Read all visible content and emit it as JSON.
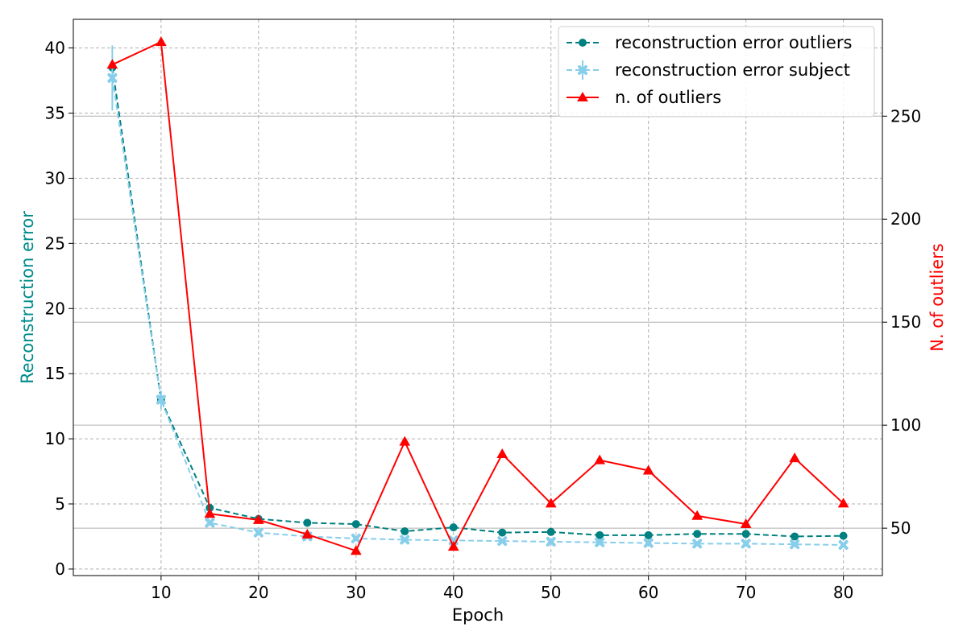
{
  "chart_data": {
    "type": "line",
    "x_label": "Epoch",
    "y_label_left": "Reconstruction error",
    "y_label_right": "N. of outliers",
    "x_lim": [
      1,
      84
    ],
    "y_lim_left": [
      -0.5,
      42.2
    ],
    "y_lim_right": [
      27,
      297
    ],
    "x_ticks": [
      10,
      20,
      30,
      40,
      50,
      60,
      70,
      80
    ],
    "y_ticks_left": [
      0,
      5,
      10,
      15,
      20,
      25,
      30,
      35,
      40
    ],
    "y_ticks_right": [
      50,
      100,
      150,
      200,
      250
    ],
    "grid": true,
    "legend_position": "upper right",
    "colors": {
      "left_axis_label": "#008B8B",
      "right_axis_label": "#FF0000"
    },
    "series": [
      {
        "name": "reconstruction error outliers",
        "axis": "left",
        "color": "#008080",
        "line_style": "dashed",
        "marker": "circle",
        "x": [
          5,
          10,
          15,
          20,
          25,
          30,
          35,
          40,
          45,
          50,
          55,
          60,
          65,
          70,
          75,
          80
        ],
        "y": [
          38.5,
          13.0,
          4.7,
          3.85,
          3.55,
          3.45,
          2.9,
          3.2,
          2.8,
          2.85,
          2.6,
          2.6,
          2.7,
          2.7,
          2.5,
          2.55
        ]
      },
      {
        "name": "reconstruction error subject",
        "axis": "left",
        "color": "#87CEEB",
        "line_style": "dashed",
        "marker": "x-thick",
        "x": [
          5,
          10,
          15,
          20,
          25,
          30,
          35,
          40,
          45,
          50,
          55,
          60,
          65,
          70,
          75,
          80
        ],
        "y": [
          37.7,
          13.0,
          3.55,
          2.8,
          2.5,
          2.35,
          2.25,
          2.2,
          2.15,
          2.1,
          2.05,
          2.0,
          1.95,
          1.95,
          1.9,
          1.85
        ],
        "error": [
          2.5,
          0.7,
          0.15,
          0.1,
          0.05,
          0.05,
          0.05,
          0.05,
          0.05,
          0.05,
          0.05,
          0.05,
          0.05,
          0.05,
          0.05,
          0.05
        ]
      },
      {
        "name": "n. of outliers",
        "axis": "right",
        "color": "#FF0000",
        "line_style": "solid",
        "marker": "triangle",
        "x": [
          5,
          10,
          15,
          20,
          25,
          30,
          35,
          40,
          45,
          50,
          55,
          60,
          65,
          70,
          75,
          80
        ],
        "y": [
          275,
          286,
          57,
          54,
          47,
          39,
          92,
          41,
          86,
          62,
          83,
          78,
          56,
          52,
          84,
          62
        ]
      }
    ]
  }
}
